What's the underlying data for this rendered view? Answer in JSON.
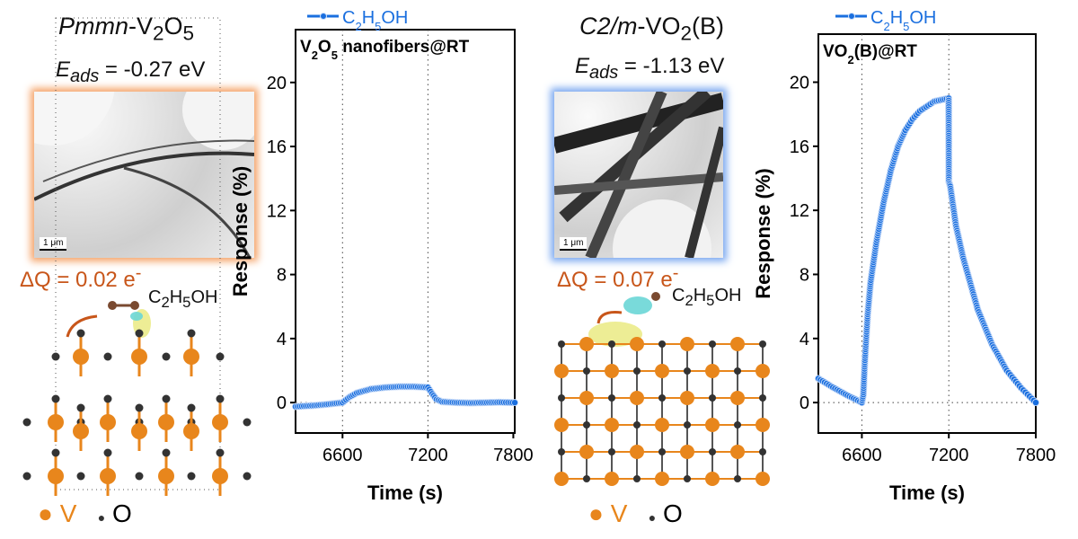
{
  "panels": [
    {
      "title_italic": "Pmmn",
      "title_rest": "-V2O5",
      "eads_label": "E",
      "eads_sub": "ads",
      "eads_value": " = -0.27 eV",
      "scale_bar": "1 μm",
      "dq": "ΔQ = 0.02 e",
      "dq_sup": "-",
      "molecule": "C2H5OH",
      "glow": "#f5a46a"
    },
    {
      "title_italic": "C2/m",
      "title_rest": "-VO2(B)",
      "eads_label": "E",
      "eads_sub": "ads",
      "eads_value": " = -1.13 eV",
      "scale_bar": "1 μm",
      "dq": "ΔQ = 0.07 e",
      "dq_sup": "-",
      "molecule": "C2H5OH",
      "glow": "#7aa8f0"
    }
  ],
  "legend_atoms": {
    "v": "V",
    "o": "O",
    "v_color": "#e8861c",
    "o_color": "#333333"
  },
  "chart_data": [
    {
      "type": "scatter",
      "title": "V2O5 nanofibers@RT",
      "xlabel": "Time (s)",
      "ylabel": "Response (%)",
      "xlim": [
        6270,
        7810
      ],
      "ylim": [
        -1.9,
        23.3
      ],
      "xticks": [
        6600,
        7200,
        7800
      ],
      "yticks": [
        0,
        4,
        8,
        12,
        16,
        20
      ],
      "vlines": [
        6600,
        7200
      ],
      "hline": 0,
      "legend": "top",
      "series": [
        {
          "name": "C2H5OH",
          "color": "#1a6fdf",
          "x": [
            6270,
            6400,
            6500,
            6600,
            6650,
            6700,
            6800,
            6900,
            7000,
            7100,
            7200,
            7230,
            7260,
            7300,
            7400,
            7500,
            7600,
            7700,
            7810
          ],
          "y": [
            -0.25,
            -0.18,
            -0.1,
            0,
            0.35,
            0.6,
            0.85,
            0.95,
            1.0,
            1.0,
            0.95,
            0.55,
            0.2,
            0.05,
            0,
            -0.02,
            0,
            0.02,
            0
          ]
        }
      ]
    },
    {
      "type": "scatter",
      "title": "VO2(B)@RT",
      "xlabel": "Time (s)",
      "ylabel": "Response (%)",
      "xlim": [
        6300,
        7800
      ],
      "ylim": [
        -1.9,
        23
      ],
      "xticks": [
        6600,
        7200,
        7800
      ],
      "yticks": [
        0,
        4,
        8,
        12,
        16,
        20
      ],
      "vlines": [
        6600,
        7200
      ],
      "hline": 0,
      "legend": "top",
      "series": [
        {
          "name": "C2H5OH",
          "color": "#1a6fdf",
          "x": [
            6300,
            6400,
            6500,
            6600,
            6610,
            6620,
            6640,
            6660,
            6700,
            6750,
            6800,
            6850,
            6900,
            6950,
            7000,
            7100,
            7199,
            7200,
            7210,
            7250,
            7300,
            7400,
            7500,
            7600,
            7700,
            7800
          ],
          "y": [
            1.5,
            0.95,
            0.45,
            0,
            0.5,
            2.5,
            5.5,
            7.5,
            10,
            12.5,
            14.5,
            16,
            17,
            17.7,
            18.2,
            18.8,
            19,
            13.8,
            13.5,
            11,
            9,
            5.8,
            3.6,
            2.0,
            0.9,
            0
          ]
        }
      ]
    }
  ]
}
